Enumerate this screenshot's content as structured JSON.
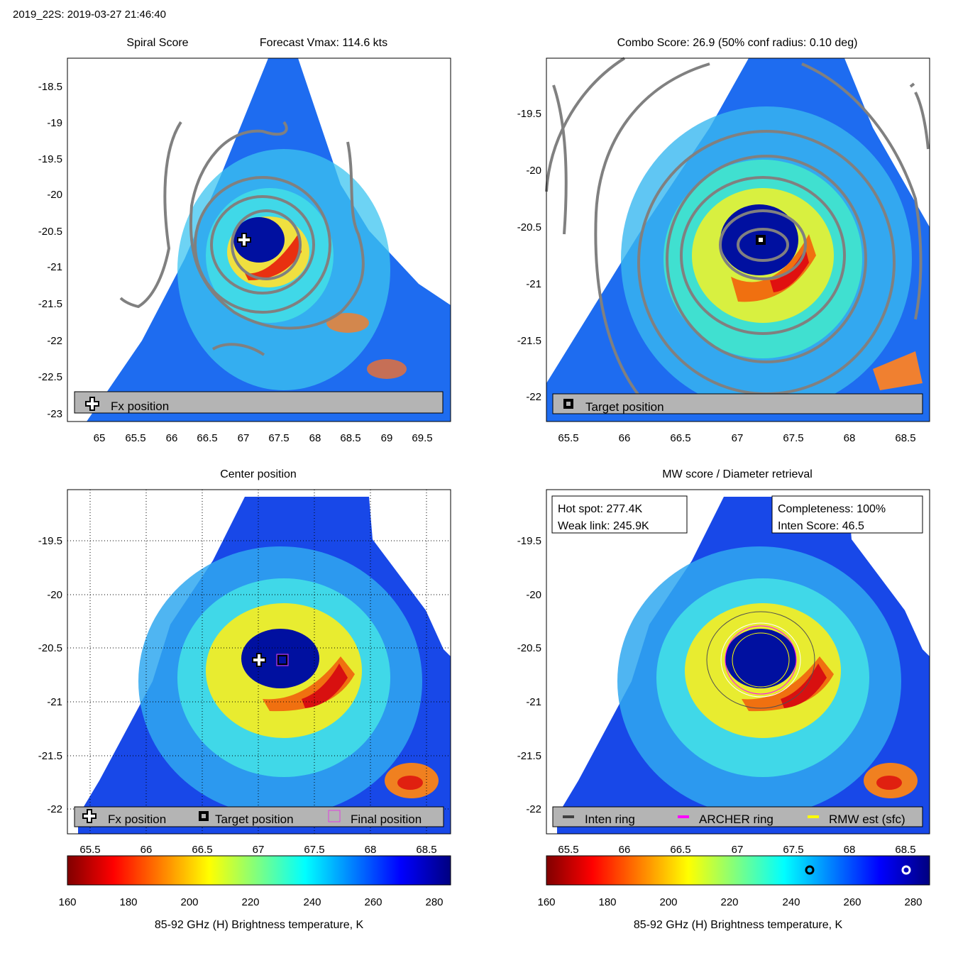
{
  "figure_title": "2019_22S: 2019-03-27 21:46:40",
  "panels": {
    "spiral": {
      "title_left": "Spiral Score",
      "title_right": "Forecast Vmax: 114.6 kts",
      "legend": "Fx position"
    },
    "combo": {
      "title": "Combo Score: 26.9  (50% conf radius: 0.10 deg)",
      "legend": "Target position"
    },
    "center": {
      "title": "Center position",
      "legend": [
        "Fx position",
        "Target position",
        "Final position"
      ]
    },
    "mw": {
      "title": "MW score / Diameter retrieval",
      "info_left": [
        "Hot spot: 277.4K",
        "Weak link: 245.9K"
      ],
      "info_right": [
        "Completeness: 100%",
        "Inten Score: 46.5"
      ],
      "legend": [
        "Inten ring",
        "ARCHER ring",
        "RMW est (sfc)"
      ]
    }
  },
  "colorbar": {
    "label": "85-92 GHz (H) Brightness temperature, K",
    "ticks": [
      "160",
      "180",
      "200",
      "220",
      "240",
      "260",
      "280"
    ],
    "range": [
      155,
      285
    ],
    "colormap": "jet",
    "markers": [
      {
        "value": 245.9,
        "color": "#000000"
      },
      {
        "value": 277.4,
        "color": "#ffffff"
      }
    ]
  },
  "colors": {
    "contour": "#808080",
    "legend_box": "#b4b4b4",
    "inten_ring": "#404040",
    "archer_ring": "#ff00ff",
    "rmw_ring": "#ffff00",
    "final_marker": "#e040e0"
  },
  "chart_data": [
    {
      "type": "heatmap",
      "title": "Spiral Score",
      "annotation": "Forecast Vmax: 114.6 kts",
      "xlim": [
        64.6,
        69.9
      ],
      "ylim": [
        -23.1,
        -18.1
      ],
      "x_ticks": [
        "65",
        "65.5",
        "66",
        "66.5",
        "67",
        "67.5",
        "68",
        "68.5",
        "69",
        "69.5"
      ],
      "y_ticks": [
        "-18.5",
        "-19",
        "-19.5",
        "-20",
        "-20.5",
        "-21",
        "-21.5",
        "-22",
        "-22.5",
        "-23"
      ],
      "markers": [
        {
          "label": "Fx position",
          "x": 67.0,
          "y": -20.62
        }
      ],
      "legend": [
        "Fx position"
      ],
      "grid": false
    },
    {
      "type": "heatmap",
      "title": "Combo Score: 26.9  (50% conf radius: 0.10 deg)",
      "xlim": [
        65.3,
        68.7
      ],
      "ylim": [
        -22.23,
        -19.0
      ],
      "x_ticks": [
        "65.5",
        "66",
        "66.5",
        "67",
        "67.5",
        "68",
        "68.5"
      ],
      "y_ticks": [
        "-19.5",
        "-20",
        "-20.5",
        "-21",
        "-21.5",
        "-22"
      ],
      "markers": [
        {
          "label": "Target position",
          "x": 67.22,
          "y": -20.62
        }
      ],
      "legend": [
        "Target position"
      ],
      "grid": false
    },
    {
      "type": "heatmap",
      "title": "Center position",
      "xlim": [
        65.3,
        68.7
      ],
      "ylim": [
        -22.23,
        -19.0
      ],
      "x_ticks": [
        "65.5",
        "66",
        "66.5",
        "67",
        "67.5",
        "68",
        "68.5"
      ],
      "y_ticks": [
        "-19.5",
        "-20",
        "-20.5",
        "-21",
        "-21.5",
        "-22"
      ],
      "markers": [
        {
          "label": "Fx position",
          "x": 67.0,
          "y": -20.62
        },
        {
          "label": "Target position",
          "x": 67.22,
          "y": -20.62
        },
        {
          "label": "Final position",
          "x": 67.22,
          "y": -20.62
        }
      ],
      "legend": [
        "Fx position",
        "Target position",
        "Final position"
      ],
      "grid": true
    },
    {
      "type": "heatmap",
      "title": "MW score / Diameter retrieval",
      "xlim": [
        65.3,
        68.7
      ],
      "ylim": [
        -22.23,
        -19.0
      ],
      "x_ticks": [
        "65.5",
        "66",
        "66.5",
        "67",
        "67.5",
        "68",
        "68.5"
      ],
      "y_ticks": [
        "-19.5",
        "-20",
        "-20.5",
        "-21",
        "-21.5",
        "-22"
      ],
      "rings_deg": [
        {
          "label": "Inten ring",
          "x": 67.22,
          "y": -20.62,
          "r": 0.48
        },
        {
          "label": "ARCHER ring",
          "x": 67.22,
          "y": -20.62,
          "r": 0.3
        },
        {
          "label": "RMW est (sfc)",
          "x": 67.22,
          "y": -20.62,
          "r": 0.26
        }
      ],
      "legend": [
        "Inten ring",
        "ARCHER ring",
        "RMW est (sfc)"
      ],
      "hot_spot_K": 277.4,
      "weak_link_K": 245.9,
      "completeness_pct": 100,
      "inten_score": 46.5,
      "grid": false
    }
  ]
}
